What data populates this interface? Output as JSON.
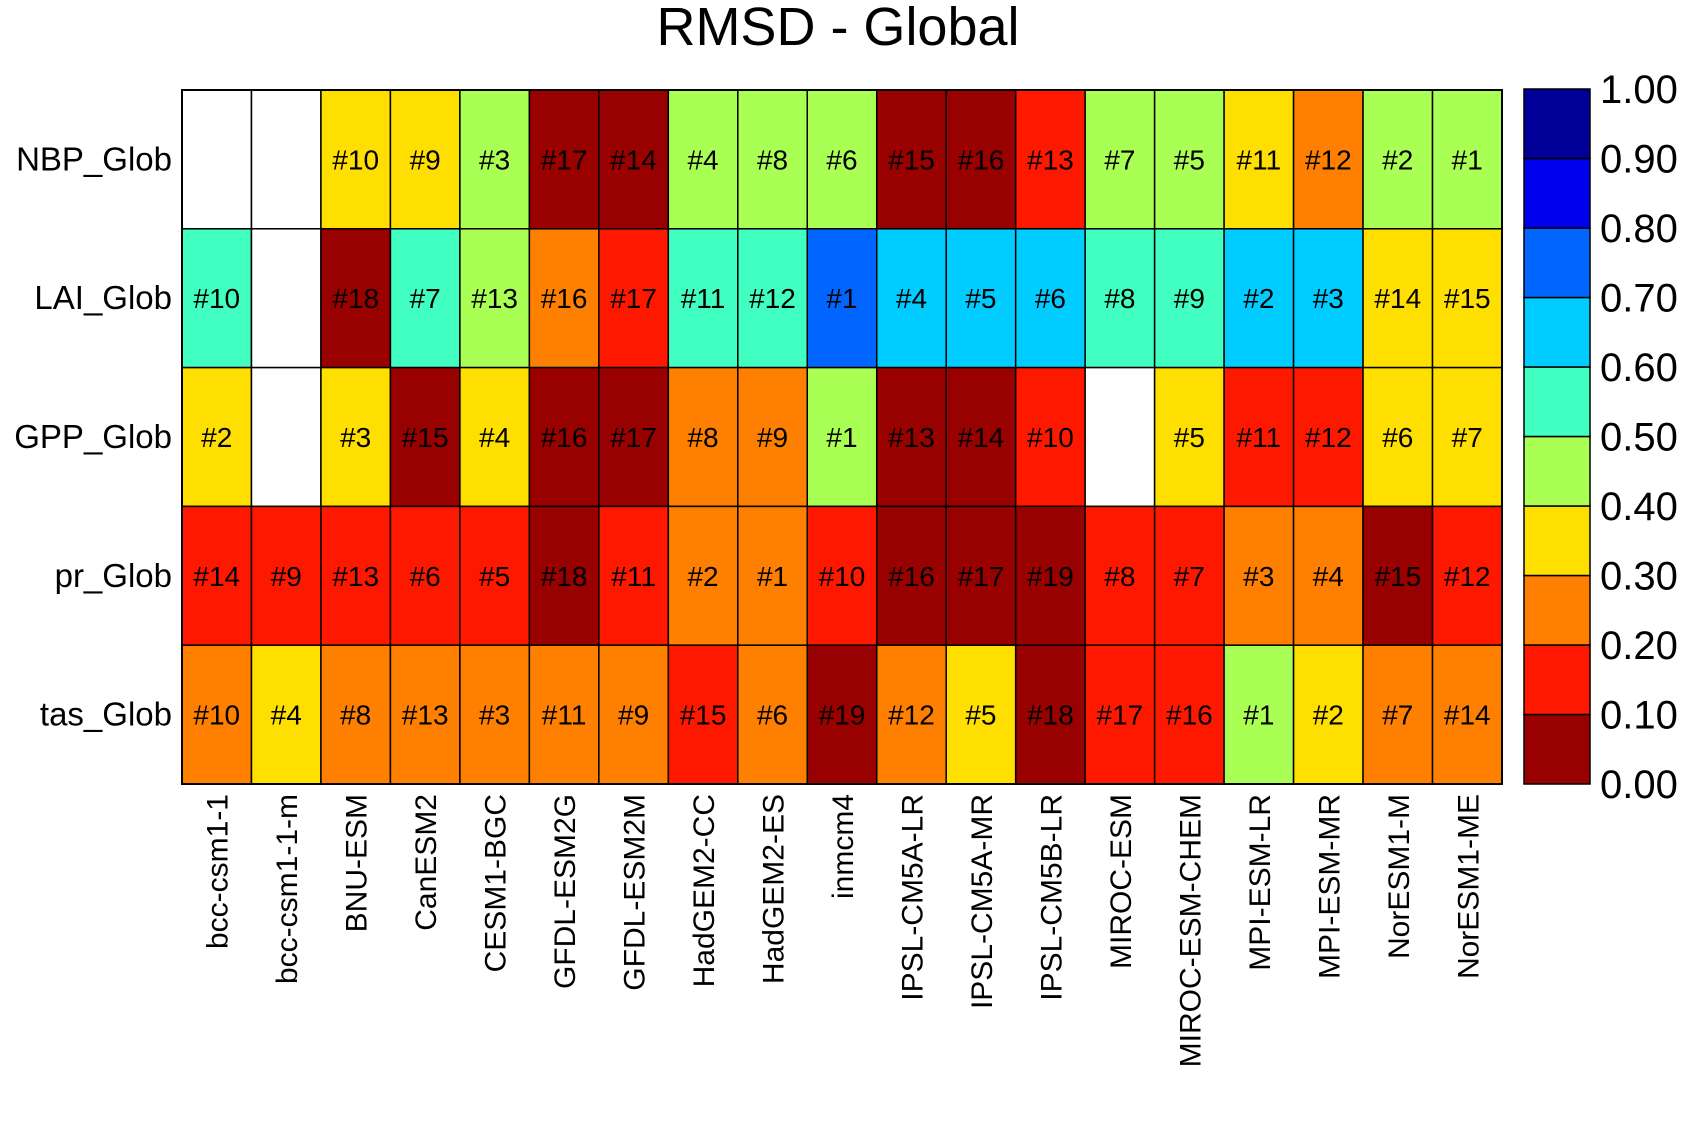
{
  "chart_data": {
    "type": "heatmap",
    "title": "RMSD - Global",
    "rows": [
      "NBP_Glob",
      "LAI_Glob",
      "GPP_Glob",
      "pr_Glob",
      "tas_Glob"
    ],
    "columns": [
      "bcc-csm1-1",
      "bcc-csm1-1-m",
      "BNU-ESM",
      "CanESM2",
      "CESM1-BGC",
      "GFDL-ESM2G",
      "GFDL-ESM2M",
      "HadGEM2-CC",
      "HadGEM2-ES",
      "inmcm4",
      "IPSL-CM5A-LR",
      "IPSL-CM5A-MR",
      "IPSL-CM5B-LR",
      "MIROC-ESM",
      "MIROC-ESM-CHEM",
      "MPI-ESM-LR",
      "MPI-ESM-MR",
      "NorESM1-M",
      "NorESM1-ME"
    ],
    "values": [
      [
        null,
        null,
        0.35,
        0.35,
        0.45,
        0.05,
        0.05,
        0.45,
        0.45,
        0.45,
        0.05,
        0.05,
        0.15,
        0.45,
        0.45,
        0.35,
        0.25,
        0.45,
        0.45
      ],
      [
        0.55,
        null,
        0.05,
        0.55,
        0.45,
        0.25,
        0.15,
        0.55,
        0.55,
        0.75,
        0.65,
        0.65,
        0.65,
        0.55,
        0.55,
        0.65,
        0.65,
        0.35,
        0.35
      ],
      [
        0.35,
        null,
        0.35,
        0.05,
        0.35,
        0.05,
        0.05,
        0.25,
        0.25,
        0.45,
        0.05,
        0.05,
        0.15,
        null,
        0.35,
        0.15,
        0.15,
        0.35,
        0.35
      ],
      [
        0.15,
        0.15,
        0.15,
        0.15,
        0.15,
        0.05,
        0.15,
        0.25,
        0.25,
        0.15,
        0.05,
        0.05,
        0.05,
        0.15,
        0.15,
        0.25,
        0.25,
        0.05,
        0.15
      ],
      [
        0.25,
        0.35,
        0.25,
        0.25,
        0.25,
        0.25,
        0.25,
        0.15,
        0.25,
        0.05,
        0.25,
        0.35,
        0.05,
        0.15,
        0.15,
        0.45,
        0.35,
        0.25,
        0.25
      ]
    ],
    "ranks": [
      [
        "",
        "",
        "#10",
        "#9",
        "#3",
        "#17",
        "#14",
        "#4",
        "#8",
        "#6",
        "#15",
        "#16",
        "#13",
        "#7",
        "#5",
        "#11",
        "#12",
        "#2",
        "#1"
      ],
      [
        "#10",
        "",
        "#18",
        "#7",
        "#13",
        "#16",
        "#17",
        "#11",
        "#12",
        "#1",
        "#4",
        "#5",
        "#6",
        "#8",
        "#9",
        "#2",
        "#3",
        "#14",
        "#15"
      ],
      [
        "#2",
        "",
        "#3",
        "#15",
        "#4",
        "#16",
        "#17",
        "#8",
        "#9",
        "#1",
        "#13",
        "#14",
        "#10",
        "",
        "#5",
        "#11",
        "#12",
        "#6",
        "#7"
      ],
      [
        "#14",
        "#9",
        "#13",
        "#6",
        "#5",
        "#18",
        "#11",
        "#2",
        "#1",
        "#10",
        "#16",
        "#17",
        "#19",
        "#8",
        "#7",
        "#3",
        "#4",
        "#15",
        "#12"
      ],
      [
        "#10",
        "#4",
        "#8",
        "#13",
        "#3",
        "#11",
        "#9",
        "#15",
        "#6",
        "#19",
        "#12",
        "#5",
        "#18",
        "#17",
        "#16",
        "#1",
        "#2",
        "#7",
        "#14"
      ]
    ],
    "colorbar": {
      "levels": [
        0.0,
        0.1,
        0.2,
        0.3,
        0.4,
        0.5,
        0.6,
        0.7,
        0.8,
        0.9,
        1.0
      ],
      "labels": [
        "0.00",
        "0.10",
        "0.20",
        "0.30",
        "0.40",
        "0.50",
        "0.60",
        "0.70",
        "0.80",
        "0.90",
        "1.00"
      ],
      "colors": [
        "#990000",
        "#ff1800",
        "#ff7f00",
        "#ffdf00",
        "#aaff55",
        "#40ffc0",
        "#00ccff",
        "#0066ff",
        "#0000ee",
        "#000099"
      ],
      "missing_color": "#ffffff"
    }
  }
}
